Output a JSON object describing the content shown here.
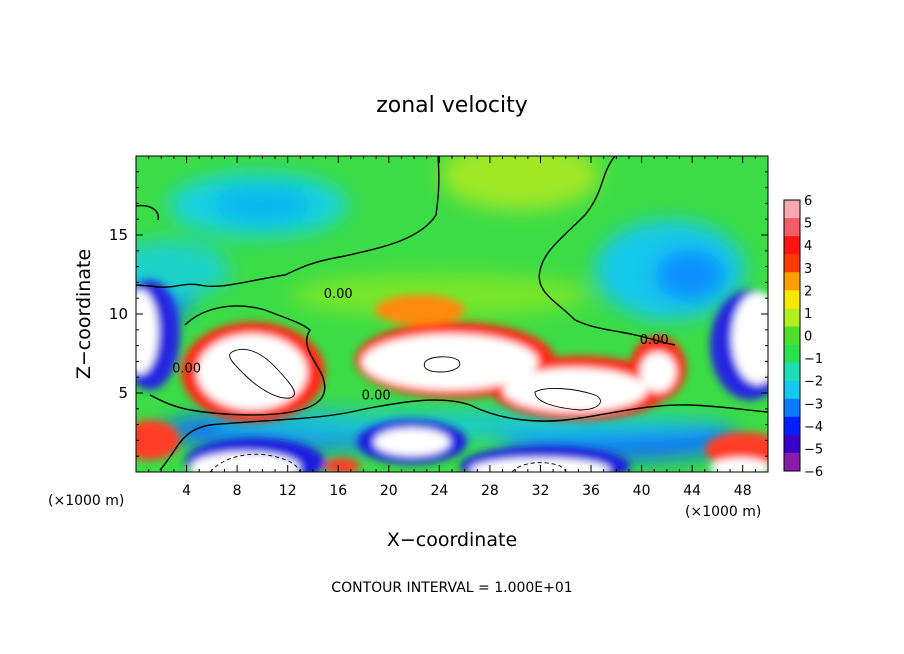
{
  "chart_data": {
    "type": "heatmap",
    "title": "zonal velocity",
    "xlabel": "X−coordinate",
    "ylabel": "Z−coordinate",
    "x_unit_left": "(×1000 m)",
    "x_unit_right": "(×1000 m)",
    "footer": "CONTOUR INTERVAL = 1.000E+01",
    "xlim": [
      0,
      50
    ],
    "ylim": [
      0,
      20
    ],
    "x_ticks": [
      4,
      8,
      12,
      16,
      20,
      24,
      28,
      32,
      36,
      40,
      44,
      48
    ],
    "x_tick_labels": [
      "4",
      "8",
      "12",
      "16",
      "20",
      "24",
      "28",
      "32",
      "36",
      "40",
      "44",
      "48"
    ],
    "y_ticks": [
      5,
      10,
      15
    ],
    "y_tick_labels": [
      "5",
      "10",
      "15"
    ],
    "contour_labels": [
      {
        "text": "0.00",
        "x": 16.0,
        "y": 11.0
      },
      {
        "text": "0.00",
        "x": 4.0,
        "y": 6.3
      },
      {
        "text": "0.00",
        "x": 19.0,
        "y": 4.6
      },
      {
        "text": "0.00",
        "x": 41.0,
        "y": 8.1
      }
    ],
    "colorbar": {
      "levels": [
        -6,
        -5,
        -4,
        -3,
        -2,
        -1,
        0,
        1,
        2,
        3,
        4,
        5,
        6
      ],
      "labels": [
        "6",
        "5",
        "4",
        "3",
        "2",
        "1",
        "0",
        "−1",
        "−2",
        "−3",
        "−4",
        "−5",
        "−6"
      ],
      "colors": [
        "#8a1aa8",
        "#3a00c8",
        "#0020ff",
        "#0a7cff",
        "#14c8f0",
        "#1edcb4",
        "#28e050",
        "#50e02c",
        "#b4f020",
        "#f8e800",
        "#ffa000",
        "#ff3c00",
        "#ff1414",
        "#f05c68",
        "#f8a8b0"
      ]
    },
    "saturated_color": "#ffffff",
    "background_color": "#3cdc46"
  }
}
